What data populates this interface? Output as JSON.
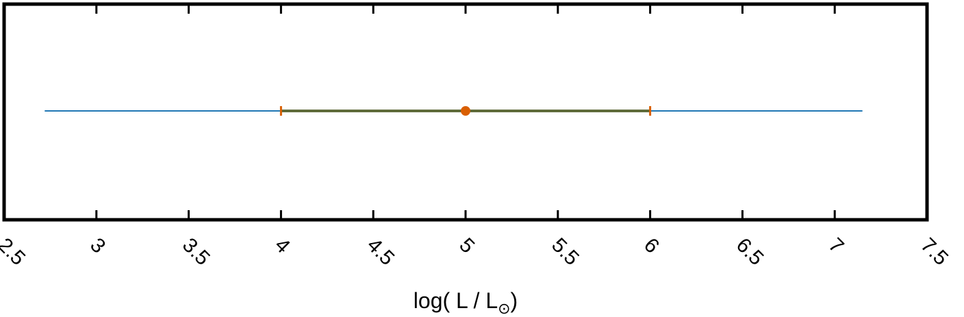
{
  "chart_data": {
    "type": "scatter",
    "xlabel": "log( L / L",
    "xlabel_sub": "⊙",
    "xlabel_close": ")",
    "xlim": [
      2.5,
      7.5
    ],
    "x_ticks": [
      2.5,
      3,
      3.5,
      4,
      4.5,
      5,
      5.5,
      6,
      6.5,
      7,
      7.5
    ],
    "x_tick_labels": [
      "2.5",
      "3",
      "3.5",
      "4",
      "4.5",
      "5",
      "5.5",
      "6",
      "6.5",
      "7",
      "7.5"
    ],
    "grid": false,
    "range_line": {
      "x": [
        2.72,
        7.15
      ],
      "color": "#1f77b4"
    },
    "point": {
      "x": 5,
      "xerr_low": 4,
      "xerr_high": 6,
      "color": "#d95f02"
    }
  }
}
